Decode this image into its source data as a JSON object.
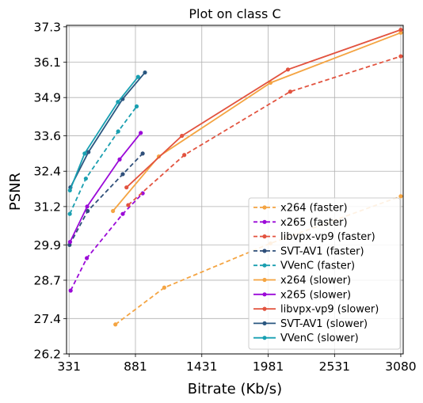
{
  "chart_data": {
    "type": "line",
    "title": "Plot on class C",
    "xlabel": "Bitrate (Kb/s)",
    "ylabel": "PSNR",
    "xlim": [
      310,
      3100
    ],
    "ylim": [
      26.2,
      37.35
    ],
    "xticks": [
      331,
      881,
      1431,
      1981,
      2531,
      3080
    ],
    "xtick_labels": [
      "331",
      "881",
      "1431",
      "1981",
      "2531",
      "3080"
    ],
    "yticks": [
      26.2,
      27.4,
      28.7,
      29.9,
      31.2,
      32.4,
      33.6,
      34.9,
      36.1,
      37.3
    ],
    "ytick_labels": [
      "26.2",
      "27.4",
      "28.7",
      "29.9",
      "31.2",
      "32.4",
      "33.6",
      "34.9",
      "36.1",
      "37.3"
    ],
    "grid": true,
    "legend_position": "bottom-right",
    "series": [
      {
        "name": "x264 (faster)",
        "color": "#f4a442",
        "dashed": true,
        "x": [
          715,
          1120,
          2000,
          3080
        ],
        "y": [
          27.2,
          28.45,
          29.95,
          31.55
        ]
      },
      {
        "name": "x265 (faster)",
        "color": "#9b0ad8",
        "dashed": true,
        "x": [
          344,
          478,
          776,
          941
        ],
        "y": [
          28.35,
          29.45,
          30.95,
          31.65
        ]
      },
      {
        "name": "libvpx-vp9 (faster)",
        "color": "#e2533f",
        "dashed": true,
        "x": [
          821,
          1286,
          2164,
          3080
        ],
        "y": [
          31.25,
          32.95,
          35.1,
          36.3
        ]
      },
      {
        "name": "SVT-AV1 (faster)",
        "color": "#2f4f7a",
        "dashed": true,
        "x": [
          335,
          485,
          776,
          941
        ],
        "y": [
          29.9,
          31.05,
          32.3,
          33.0
        ]
      },
      {
        "name": "VVenC (faster)",
        "color": "#1a9fb0",
        "dashed": true,
        "x": [
          337,
          470,
          738,
          891
        ],
        "y": [
          30.95,
          32.15,
          33.75,
          34.6
        ]
      },
      {
        "name": "x264 (slower)",
        "color": "#f4a442",
        "dashed": false,
        "x": [
          695,
          1075,
          2000,
          3080
        ],
        "y": [
          31.05,
          32.9,
          35.4,
          37.1
        ]
      },
      {
        "name": "x265 (slower)",
        "color": "#9b0ad8",
        "dashed": false,
        "x": [
          339,
          481,
          750,
          925
        ],
        "y": [
          30.0,
          31.2,
          32.8,
          33.7
        ]
      },
      {
        "name": "libvpx-vp9 (slower)",
        "color": "#e2533f",
        "dashed": false,
        "x": [
          807,
          1266,
          2145,
          3080
        ],
        "y": [
          31.85,
          33.6,
          35.85,
          37.2
        ]
      },
      {
        "name": "SVT-AV1 (slower)",
        "color": "#2a5780",
        "dashed": false,
        "x": [
          342,
          492,
          775,
          960
        ],
        "y": [
          31.85,
          33.05,
          34.85,
          35.75
        ]
      },
      {
        "name": "VVenC (slower)",
        "color": "#18a0b2",
        "dashed": false,
        "x": [
          338,
          460,
          736,
          903
        ],
        "y": [
          31.75,
          33.0,
          34.75,
          35.6
        ]
      }
    ]
  }
}
